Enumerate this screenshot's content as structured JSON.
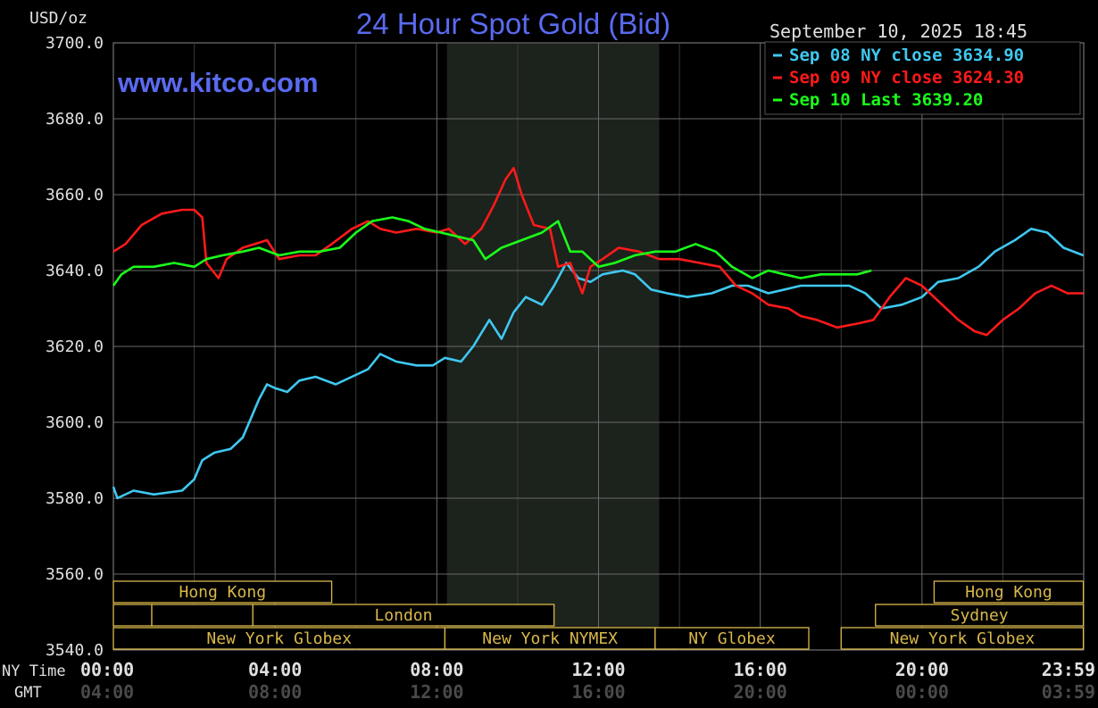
{
  "chart_data": {
    "type": "line",
    "title": "24 Hour Spot Gold (Bid)",
    "watermark": "www.kitco.com",
    "ylabel": "USD/oz",
    "timestamp": "September 10, 2025 18:45",
    "ylim": [
      3540,
      3700
    ],
    "y_ticks": [
      "3700.0",
      "3680.0",
      "3660.0",
      "3640.0",
      "3620.0",
      "3600.0",
      "3580.0",
      "3560.0",
      "3540.0"
    ],
    "x_row_labels": [
      "NY Time",
      "GMT"
    ],
    "x_ticks_ny": [
      "00:00",
      "04:00",
      "08:00",
      "12:00",
      "16:00",
      "20:00",
      "23:59"
    ],
    "x_ticks_gmt": [
      "04:00",
      "08:00",
      "12:00",
      "16:00",
      "20:00",
      "00:00",
      "03:59"
    ],
    "xlim_hours": [
      0,
      24
    ],
    "shaded_period_hours": [
      8.25,
      13.5
    ],
    "grid": true,
    "legend_position": "top-right",
    "series": [
      {
        "name": "Sep 08 NY close 3634.90",
        "color": "#3fc8f0",
        "points": [
          [
            0,
            3583
          ],
          [
            0.1,
            3580
          ],
          [
            0.5,
            3582
          ],
          [
            1,
            3581
          ],
          [
            1.7,
            3582
          ],
          [
            2,
            3585
          ],
          [
            2.2,
            3590
          ],
          [
            2.5,
            3592
          ],
          [
            2.9,
            3593
          ],
          [
            3.2,
            3596
          ],
          [
            3.4,
            3601
          ],
          [
            3.6,
            3606
          ],
          [
            3.8,
            3610
          ],
          [
            4.0,
            3609
          ],
          [
            4.3,
            3608
          ],
          [
            4.6,
            3611
          ],
          [
            5,
            3612
          ],
          [
            5.5,
            3610
          ],
          [
            5.9,
            3612
          ],
          [
            6.3,
            3614
          ],
          [
            6.6,
            3618
          ],
          [
            7,
            3616
          ],
          [
            7.5,
            3615
          ],
          [
            7.9,
            3615
          ],
          [
            8.2,
            3617
          ],
          [
            8.6,
            3616
          ],
          [
            8.9,
            3620
          ],
          [
            9.3,
            3627
          ],
          [
            9.6,
            3622
          ],
          [
            9.9,
            3629
          ],
          [
            10.2,
            3633
          ],
          [
            10.6,
            3631
          ],
          [
            10.9,
            3636
          ],
          [
            11.2,
            3642
          ],
          [
            11.5,
            3638
          ],
          [
            11.8,
            3637
          ],
          [
            12.1,
            3639
          ],
          [
            12.6,
            3640
          ],
          [
            12.9,
            3639
          ],
          [
            13.3,
            3635
          ],
          [
            13.7,
            3634
          ],
          [
            14.2,
            3633
          ],
          [
            14.8,
            3634
          ],
          [
            15.3,
            3636
          ],
          [
            15.7,
            3636
          ],
          [
            16.2,
            3634
          ],
          [
            16.6,
            3635
          ],
          [
            17,
            3636
          ],
          [
            17.8,
            3636
          ],
          [
            18.2,
            3636
          ],
          [
            18.6,
            3634
          ],
          [
            19,
            3630
          ],
          [
            19.5,
            3631
          ],
          [
            20,
            3633
          ],
          [
            20.4,
            3637
          ],
          [
            20.9,
            3638
          ],
          [
            21.4,
            3641
          ],
          [
            21.8,
            3645
          ],
          [
            22.3,
            3648
          ],
          [
            22.7,
            3651
          ],
          [
            23.1,
            3650
          ],
          [
            23.5,
            3646
          ],
          [
            23.99,
            3644
          ]
        ]
      },
      {
        "name": "Sep 09 NY close 3624.30",
        "color": "#ff1a1a",
        "points": [
          [
            0,
            3645
          ],
          [
            0.3,
            3647
          ],
          [
            0.7,
            3652
          ],
          [
            1.2,
            3655
          ],
          [
            1.7,
            3656
          ],
          [
            2.0,
            3656
          ],
          [
            2.2,
            3654
          ],
          [
            2.3,
            3642
          ],
          [
            2.6,
            3638
          ],
          [
            2.8,
            3643
          ],
          [
            3.2,
            3646
          ],
          [
            3.8,
            3648
          ],
          [
            4.1,
            3643
          ],
          [
            4.6,
            3644
          ],
          [
            5,
            3644
          ],
          [
            5.4,
            3647
          ],
          [
            5.9,
            3651
          ],
          [
            6.3,
            3653
          ],
          [
            6.6,
            3651
          ],
          [
            7,
            3650
          ],
          [
            7.5,
            3651
          ],
          [
            8.0,
            3650
          ],
          [
            8.3,
            3651
          ],
          [
            8.7,
            3647
          ],
          [
            9.1,
            3651
          ],
          [
            9.4,
            3657
          ],
          [
            9.7,
            3664
          ],
          [
            9.9,
            3667
          ],
          [
            10.1,
            3660
          ],
          [
            10.4,
            3652
          ],
          [
            10.8,
            3651
          ],
          [
            11.0,
            3641
          ],
          [
            11.3,
            3642
          ],
          [
            11.6,
            3634
          ],
          [
            11.8,
            3641
          ],
          [
            12.1,
            3643
          ],
          [
            12.5,
            3646
          ],
          [
            13,
            3645
          ],
          [
            13.5,
            3643
          ],
          [
            14,
            3643
          ],
          [
            14.5,
            3642
          ],
          [
            15,
            3641
          ],
          [
            15.4,
            3636
          ],
          [
            15.8,
            3634
          ],
          [
            16.2,
            3631
          ],
          [
            16.7,
            3630
          ],
          [
            17.0,
            3628
          ],
          [
            17.4,
            3627
          ],
          [
            17.9,
            3625
          ],
          [
            18.4,
            3626
          ],
          [
            18.8,
            3627
          ],
          [
            19.2,
            3633
          ],
          [
            19.6,
            3638
          ],
          [
            20.0,
            3636
          ],
          [
            20.4,
            3632
          ],
          [
            20.9,
            3627
          ],
          [
            21.3,
            3624
          ],
          [
            21.6,
            3623
          ],
          [
            22.0,
            3627
          ],
          [
            22.4,
            3630
          ],
          [
            22.8,
            3634
          ],
          [
            23.2,
            3636
          ],
          [
            23.6,
            3634
          ],
          [
            23.99,
            3634
          ]
        ]
      },
      {
        "name": "Sep 10 Last 3639.20",
        "color": "#1aff1a",
        "points": [
          [
            0,
            3636
          ],
          [
            0.2,
            3639
          ],
          [
            0.5,
            3641
          ],
          [
            1,
            3641
          ],
          [
            1.5,
            3642
          ],
          [
            2,
            3641
          ],
          [
            2.3,
            3643
          ],
          [
            2.7,
            3644
          ],
          [
            3.2,
            3645
          ],
          [
            3.6,
            3646
          ],
          [
            4.1,
            3644
          ],
          [
            4.6,
            3645
          ],
          [
            5.1,
            3645
          ],
          [
            5.6,
            3646
          ],
          [
            6.0,
            3650
          ],
          [
            6.4,
            3653
          ],
          [
            6.9,
            3654
          ],
          [
            7.3,
            3653
          ],
          [
            7.7,
            3651
          ],
          [
            8.1,
            3650
          ],
          [
            8.5,
            3649
          ],
          [
            8.9,
            3648
          ],
          [
            9.2,
            3643
          ],
          [
            9.6,
            3646
          ],
          [
            10.1,
            3648
          ],
          [
            10.6,
            3650
          ],
          [
            11.0,
            3653
          ],
          [
            11.3,
            3645
          ],
          [
            11.6,
            3645
          ],
          [
            12.0,
            3641
          ],
          [
            12.4,
            3642
          ],
          [
            12.9,
            3644
          ],
          [
            13.4,
            3645
          ],
          [
            13.9,
            3645
          ],
          [
            14.4,
            3647
          ],
          [
            14.9,
            3645
          ],
          [
            15.3,
            3641
          ],
          [
            15.8,
            3638
          ],
          [
            16.2,
            3640
          ],
          [
            16.6,
            3639
          ],
          [
            17.0,
            3638
          ],
          [
            17.5,
            3639
          ],
          [
            18.0,
            3639
          ],
          [
            18.4,
            3639
          ],
          [
            18.75,
            3640
          ]
        ]
      }
    ],
    "sessions": [
      {
        "label": "Hong Kong",
        "row": 0,
        "start": 0,
        "end": 5.4
      },
      {
        "label": "",
        "row": 1,
        "start": 0,
        "end": 0.95
      },
      {
        "label": "",
        "row": 1,
        "start": 0.95,
        "end": 3.45
      },
      {
        "label": "London",
        "row": 1,
        "start": 3.45,
        "end": 10.9
      },
      {
        "label": "New York Globex",
        "row": 2,
        "start": 0,
        "end": 8.2
      },
      {
        "label": "New York NYMEX",
        "row": 2,
        "start": 8.2,
        "end": 13.4
      },
      {
        "label": "NY Globex",
        "row": 2,
        "start": 13.4,
        "end": 17.2
      },
      {
        "label": "Hong Kong",
        "row": 0,
        "start": 20.3,
        "end": 23.99
      },
      {
        "label": "Sydney",
        "row": 1,
        "start": 18.85,
        "end": 23.99
      },
      {
        "label": "New York Globex",
        "row": 2,
        "start": 18.0,
        "end": 23.99
      }
    ]
  }
}
